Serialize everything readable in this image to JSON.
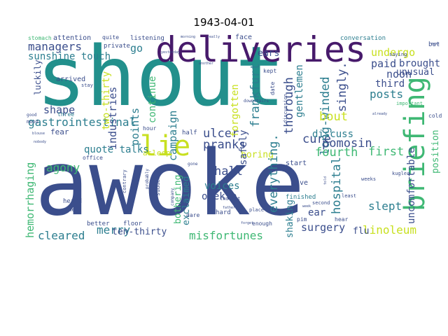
{
  "title": "1943-04-01",
  "colors": {
    "teal": "#22908c",
    "navy": "#3b4e8c",
    "purple": "#471a6b",
    "lime": "#c8e020",
    "green": "#3fb874",
    "blue": "#3a7aa8",
    "dteal": "#2c7e8f",
    "lgreen": "#7ccf4f",
    "violet": "#5a3b8a"
  },
  "words": [
    {
      "text": "shout",
      "color": "teal"
    },
    {
      "text": "awoke",
      "color": "navy"
    },
    {
      "text": "deliveries",
      "color": "purple"
    },
    {
      "text": "briefing",
      "color": "green"
    },
    {
      "text": "lie",
      "color": "lime"
    },
    {
      "text": "gastrointestinal",
      "color": "dteal"
    },
    {
      "text": "hemorrhaging",
      "color": "green"
    },
    {
      "text": "managers",
      "color": "navy"
    },
    {
      "text": "sunshine touch",
      "color": "dteal"
    },
    {
      "text": "industries",
      "color": "navy"
    },
    {
      "text": "two-thirty",
      "color": "lime"
    },
    {
      "text": "points",
      "color": "dteal"
    },
    {
      "text": "campaign",
      "color": "dteal"
    },
    {
      "text": "continue",
      "color": "green"
    },
    {
      "text": "go",
      "color": "dteal"
    },
    {
      "text": "shape",
      "color": "navy"
    },
    {
      "text": "quote talks",
      "color": "dteal"
    },
    {
      "text": "agony",
      "color": "green"
    },
    {
      "text": "cleared",
      "color": "dteal"
    },
    {
      "text": "merry",
      "color": "dteal"
    },
    {
      "text": "ten-thirty",
      "color": "navy"
    },
    {
      "text": "misfortunes",
      "color": "green"
    },
    {
      "text": "voices",
      "color": "dteal"
    },
    {
      "text": "opekta",
      "color": "navy"
    },
    {
      "text": "exclaimed",
      "color": "dteal"
    },
    {
      "text": "bothering",
      "color": "green"
    },
    {
      "text": "pranks",
      "color": "navy"
    },
    {
      "text": "hall",
      "color": "navy"
    },
    {
      "text": "ulcer",
      "color": "navy"
    },
    {
      "text": "boring",
      "color": "lime"
    },
    {
      "text": "safely",
      "color": "navy"
    },
    {
      "text": "forgotten",
      "color": "lime"
    },
    {
      "text": "frankfurt",
      "color": "dteal"
    },
    {
      "text": "everything.",
      "color": "dteal"
    },
    {
      "text": "thorough",
      "color": "navy"
    },
    {
      "text": "long-winded",
      "color": "dteal"
    },
    {
      "text": "gentlemen",
      "color": "dteal"
    },
    {
      "text": "hospital",
      "color": "dteal"
    },
    {
      "text": "singly.",
      "color": "navy"
    },
    {
      "text": "cure",
      "color": "navy"
    },
    {
      "text": "pomosin",
      "color": "navy"
    },
    {
      "text": "discuss",
      "color": "dteal"
    },
    {
      "text": "bout",
      "color": "lime"
    },
    {
      "text": "fourth",
      "color": "green"
    },
    {
      "text": "first",
      "color": "green"
    },
    {
      "text": "posts",
      "color": "dteal"
    },
    {
      "text": "third",
      "color": "navy"
    },
    {
      "text": "paid",
      "color": "navy"
    },
    {
      "text": "undergo",
      "color": "lime"
    },
    {
      "text": "noon",
      "color": "navy"
    },
    {
      "text": "brought",
      "color": "navy"
    },
    {
      "text": "unusual",
      "color": "navy"
    },
    {
      "text": "uncomfortable",
      "color": "navy"
    },
    {
      "text": "slept",
      "color": "dteal"
    },
    {
      "text": "surgery",
      "color": "navy"
    },
    {
      "text": "linoleum",
      "color": "lime"
    },
    {
      "text": "shaking",
      "color": "dteal"
    },
    {
      "text": "ear",
      "color": "navy"
    },
    {
      "text": "flu",
      "color": "navy"
    },
    {
      "text": "ears",
      "color": "navy"
    },
    {
      "text": "luckily",
      "color": "navy"
    },
    {
      "text": "attention",
      "color": "navy"
    },
    {
      "text": "listening",
      "color": "navy"
    },
    {
      "text": "position",
      "color": "green"
    },
    {
      "text": "fear",
      "color": "navy"
    },
    {
      "text": "asleep",
      "color": "lime"
    },
    {
      "text": "half",
      "color": "navy"
    },
    {
      "text": "arrived",
      "color": "navy"
    },
    {
      "text": "conversation",
      "color": "dteal"
    },
    {
      "text": "stomach",
      "color": "green"
    },
    {
      "text": "quite",
      "color": "navy"
    },
    {
      "text": "private",
      "color": "navy"
    },
    {
      "text": "kept",
      "color": "navy"
    },
    {
      "text": "face",
      "color": "navy"
    },
    {
      "text": "start",
      "color": "navy"
    },
    {
      "text": "give",
      "color": "navy"
    },
    {
      "text": "hard",
      "color": "navy"
    },
    {
      "text": "finished",
      "color": "dteal"
    },
    {
      "text": "three",
      "color": "dteal"
    },
    {
      "text": "hour",
      "color": "navy"
    },
    {
      "text": "heard",
      "color": "navy"
    },
    {
      "text": "come",
      "color": "navy"
    },
    {
      "text": "better",
      "color": "navy"
    },
    {
      "text": "floor",
      "color": "navy"
    },
    {
      "text": "office",
      "color": "navy"
    },
    {
      "text": "suddenly",
      "color": "navy"
    },
    {
      "text": "enough",
      "color": "navy"
    },
    {
      "text": "pim",
      "color": "navy"
    },
    {
      "text": "hear",
      "color": "navy"
    },
    {
      "text": "cold",
      "color": "navy"
    },
    {
      "text": "saying",
      "color": "navy"
    },
    {
      "text": "important",
      "color": "green"
    },
    {
      "text": "date",
      "color": "navy"
    },
    {
      "text": "dare",
      "color": "navy"
    },
    {
      "text": "second",
      "color": "navy"
    },
    {
      "text": "least",
      "color": "navy"
    },
    {
      "text": "weeks",
      "color": "navy"
    },
    {
      "text": "good",
      "color": "navy"
    },
    {
      "text": "mood",
      "color": "navy"
    },
    {
      "text": "thought",
      "color": "navy"
    },
    {
      "text": "place",
      "color": "navy"
    },
    {
      "text": "discussion",
      "color": "navy"
    },
    {
      "text": "downstairs",
      "color": "navy"
    },
    {
      "text": "but",
      "color": "navy"
    },
    {
      "text": "kugler",
      "color": "navy"
    },
    {
      "text": "stay",
      "color": "navy"
    },
    {
      "text": "morning",
      "color": "navy"
    },
    {
      "text": "really",
      "color": "navy"
    },
    {
      "text": "another",
      "color": "navy"
    },
    {
      "text": "already",
      "color": "navy"
    },
    {
      "text": "company",
      "color": "navy"
    },
    {
      "text": "contrary",
      "color": "navy"
    },
    {
      "text": "probably",
      "color": "navy"
    },
    {
      "text": "gone",
      "color": "navy"
    },
    {
      "text": "father",
      "color": "navy"
    },
    {
      "text": "week",
      "color": "navy"
    },
    {
      "text": "told",
      "color": "navy"
    },
    {
      "text": "next",
      "color": "navy"
    },
    {
      "text": "yesterday",
      "color": "navy"
    },
    {
      "text": "blouse",
      "color": "navy"
    },
    {
      "text": "nobody",
      "color": "navy"
    },
    {
      "text": "forget",
      "color": "navy"
    }
  ]
}
